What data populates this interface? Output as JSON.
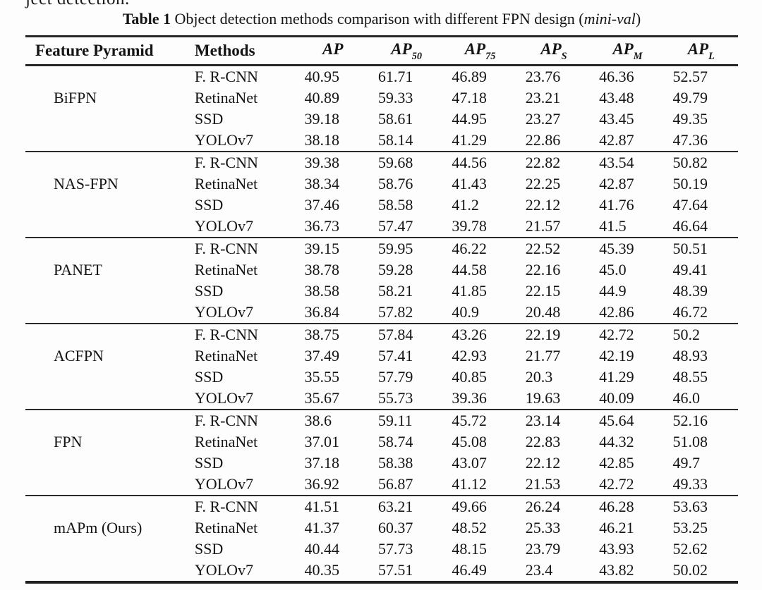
{
  "page": {
    "clipped_top_text": "ject detection.",
    "caption": {
      "label": "Table 1",
      "body": " Object detection methods comparison with different FPN design (",
      "italic": "mini-val",
      "close": ")"
    }
  },
  "table": {
    "columns": [
      {
        "base": "Feature Pyramid",
        "sub": ""
      },
      {
        "base": "Methods",
        "sub": ""
      },
      {
        "base": "AP",
        "sub": ""
      },
      {
        "base": "AP",
        "sub": "50"
      },
      {
        "base": "AP",
        "sub": "75"
      },
      {
        "base": "AP",
        "sub": "S"
      },
      {
        "base": "AP",
        "sub": "M"
      },
      {
        "base": "AP",
        "sub": "L"
      }
    ],
    "groups": [
      {
        "label": "BiFPN",
        "rows": [
          {
            "method": "F. R-CNN",
            "values": [
              "40.95",
              "61.71",
              "46.89",
              "23.76",
              "46.36",
              "52.57"
            ]
          },
          {
            "method": "RetinaNet",
            "values": [
              "40.89",
              "59.33",
              "47.18",
              "23.21",
              "43.48",
              "49.79"
            ]
          },
          {
            "method": "SSD",
            "values": [
              "39.18",
              "58.61",
              "44.95",
              "23.27",
              "43.45",
              "49.35"
            ]
          },
          {
            "method": "YOLOv7",
            "values": [
              "38.18",
              "58.14",
              "41.29",
              "22.86",
              "42.87",
              "47.36"
            ]
          }
        ]
      },
      {
        "label": "NAS-FPN",
        "rows": [
          {
            "method": "F. R-CNN",
            "values": [
              "39.38",
              "59.68",
              "44.56",
              "22.82",
              "43.54",
              "50.82"
            ]
          },
          {
            "method": "RetinaNet",
            "values": [
              "38.34",
              "58.76",
              "41.43",
              "22.25",
              "42.87",
              "50.19"
            ]
          },
          {
            "method": "SSD",
            "values": [
              "37.46",
              "58.58",
              "41.2",
              "22.12",
              "41.76",
              "47.64"
            ]
          },
          {
            "method": "YOLOv7",
            "values": [
              "36.73",
              "57.47",
              "39.78",
              "21.57",
              "41.5",
              "46.64"
            ]
          }
        ]
      },
      {
        "label": "PANET",
        "rows": [
          {
            "method": "F. R-CNN",
            "values": [
              "39.15",
              "59.95",
              "46.22",
              "22.52",
              "45.39",
              "50.51"
            ]
          },
          {
            "method": "RetinaNet",
            "values": [
              "38.78",
              "59.28",
              "44.58",
              "22.16",
              "45.0",
              "49.41"
            ]
          },
          {
            "method": "SSD",
            "values": [
              "38.58",
              "58.21",
              "41.85",
              "22.15",
              "44.9",
              "48.39"
            ]
          },
          {
            "method": "YOLOv7",
            "values": [
              "36.84",
              "57.82",
              "40.9",
              "20.48",
              "42.86",
              "46.72"
            ]
          }
        ]
      },
      {
        "label": "ACFPN",
        "rows": [
          {
            "method": "F. R-CNN",
            "values": [
              "38.75",
              "57.84",
              "43.26",
              "22.19",
              "42.72",
              "50.2"
            ]
          },
          {
            "method": "RetinaNet",
            "values": [
              "37.49",
              "57.41",
              "42.93",
              "21.77",
              "42.19",
              "48.93"
            ]
          },
          {
            "method": "SSD",
            "values": [
              "35.55",
              "57.79",
              "40.85",
              "20.3",
              "41.29",
              "48.55"
            ]
          },
          {
            "method": "YOLOv7",
            "values": [
              "35.67",
              "55.73",
              "39.36",
              "19.63",
              "40.09",
              "46.0"
            ]
          }
        ]
      },
      {
        "label": "FPN",
        "rows": [
          {
            "method": "F. R-CNN",
            "values": [
              "38.6",
              "59.11",
              "45.72",
              "23.14",
              "45.64",
              "52.16"
            ]
          },
          {
            "method": "RetinaNet",
            "values": [
              "37.01",
              "58.74",
              "45.08",
              "22.83",
              "44.32",
              "51.08"
            ]
          },
          {
            "method": "SSD",
            "values": [
              "37.18",
              "58.38",
              "43.07",
              "22.12",
              "42.85",
              "49.7"
            ]
          },
          {
            "method": "YOLOv7",
            "values": [
              "36.92",
              "56.87",
              "41.12",
              "21.53",
              "42.72",
              "49.33"
            ]
          }
        ]
      },
      {
        "label": "mAPm (Ours)",
        "rows": [
          {
            "method": "F. R-CNN",
            "values": [
              "41.51",
              "63.21",
              "49.66",
              "26.24",
              "46.28",
              "53.63"
            ]
          },
          {
            "method": "RetinaNet",
            "values": [
              "41.37",
              "60.37",
              "48.52",
              "25.33",
              "46.21",
              "53.25"
            ]
          },
          {
            "method": "SSD",
            "values": [
              "40.44",
              "57.73",
              "48.15",
              "23.79",
              "43.93",
              "52.62"
            ]
          },
          {
            "method": "YOLOv7",
            "values": [
              "40.35",
              "57.51",
              "46.49",
              "23.4",
              "43.82",
              "50.02"
            ]
          }
        ]
      }
    ]
  },
  "colors": {
    "text": "#141414",
    "rule": "#262626",
    "background": "#fdfdfd"
  }
}
